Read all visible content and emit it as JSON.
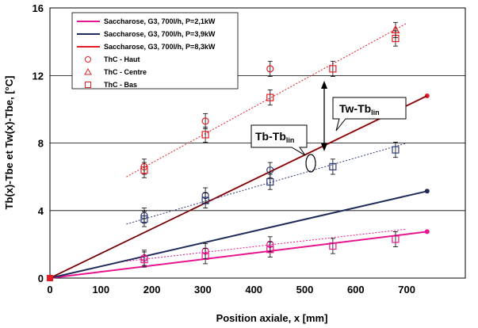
{
  "chart_data": {
    "type": "scatter",
    "xlabel": "Position axiale, x [mm]",
    "ylabel": "Tb(x)-Tbe et Tw(x)-Tbe, [°C]",
    "xlim": [
      0,
      750
    ],
    "ylim": [
      0,
      16
    ],
    "x_ticks": [
      "0",
      "100",
      "200",
      "300",
      "400",
      "500",
      "600",
      "700"
    ],
    "y_ticks": [
      "0",
      "4",
      "8",
      "12",
      "16"
    ],
    "grid": "horizontal",
    "legend_position": "top-left",
    "series": [
      {
        "name": "Saccharose, G3, 700l/h, P=2,1kW",
        "kind": "line",
        "color": "#e8138f",
        "x": [
          0,
          740
        ],
        "y": [
          0,
          2.75
        ]
      },
      {
        "name": "Saccharose, G3, 700l/h, P=3,9kW",
        "kind": "line",
        "color": "#1f2a5a",
        "x": [
          0,
          740
        ],
        "y": [
          0,
          5.15
        ]
      },
      {
        "name": "Saccharose, G3, 700l/h, P=8,3kW",
        "kind": "line",
        "color": "#e51c23",
        "x": [
          0,
          740
        ],
        "y": [
          0,
          10.8
        ]
      },
      {
        "name": "ThC - Haut",
        "kind": "marker",
        "marker": "circle",
        "color": "#e51c23",
        "x": [],
        "y": []
      },
      {
        "name": "ThC - Centre",
        "kind": "marker",
        "marker": "triangle",
        "color": "#e51c23",
        "x": [],
        "y": []
      },
      {
        "name": "ThC - Bas",
        "kind": "marker",
        "marker": "square",
        "color": "#e51c23",
        "x": [],
        "y": []
      }
    ],
    "marker_groups": [
      {
        "power": "8,3kW",
        "color": "#e51c23",
        "circle": [
          [
            185,
            6.6
          ],
          [
            305,
            9.3
          ],
          [
            432,
            12.4
          ]
        ],
        "triangle": [
          [
            678,
            14.7
          ]
        ],
        "square": [
          [
            185,
            6.4
          ],
          [
            305,
            8.5
          ],
          [
            432,
            10.7
          ],
          [
            555,
            12.4
          ],
          [
            678,
            14.2
          ]
        ],
        "trend": [
          [
            150,
            6.0
          ],
          [
            700,
            15.1
          ]
        ],
        "error": 0.45
      },
      {
        "power": "3,9kW",
        "color": "#2d3a7a",
        "circle": [
          [
            185,
            3.7
          ],
          [
            305,
            4.9
          ],
          [
            432,
            6.4
          ]
        ],
        "triangle": [],
        "square": [
          [
            185,
            3.5
          ],
          [
            305,
            4.6
          ],
          [
            432,
            5.7
          ],
          [
            555,
            6.6
          ],
          [
            678,
            7.6
          ]
        ],
        "trend": [
          [
            150,
            3.2
          ],
          [
            700,
            8.0
          ]
        ],
        "error": 0.45
      },
      {
        "power": "2,1kW",
        "color": "#e8138f",
        "circle": [
          [
            185,
            1.2
          ],
          [
            305,
            1.6
          ],
          [
            432,
            2.0
          ]
        ],
        "triangle": [],
        "square": [
          [
            185,
            1.1
          ],
          [
            305,
            1.3
          ],
          [
            432,
            1.7
          ],
          [
            555,
            1.9
          ],
          [
            678,
            2.3
          ]
        ],
        "trend": [
          [
            150,
            1.0
          ],
          [
            700,
            2.9
          ]
        ],
        "error": 0.45
      }
    ],
    "thin_line_8_3kW_x": [
      0,
      740
    ],
    "thin_line_8_3kW_y": [
      0,
      10.8
    ],
    "annotations": [
      {
        "label": "Tw-Tb",
        "sub": "lin"
      },
      {
        "label": "Tb-Tb",
        "sub": "lin"
      }
    ]
  }
}
